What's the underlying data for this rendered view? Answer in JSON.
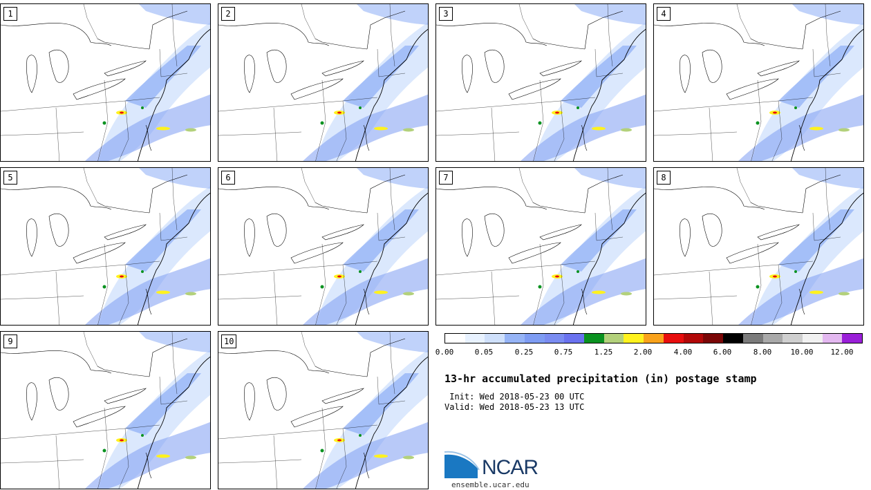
{
  "panels": [
    "1",
    "2",
    "3",
    "4",
    "5",
    "6",
    "7",
    "8",
    "9",
    "10"
  ],
  "colorbar": {
    "colors": [
      "#ffffff",
      "#e8f2ff",
      "#cfe0fb",
      "#96b4f6",
      "#7e9cf3",
      "#7a8cf1",
      "#6a72ef",
      "#0a9220",
      "#b3d17b",
      "#fff21e",
      "#f9a21b",
      "#e80e0e",
      "#b20808",
      "#7a0606",
      "#000000",
      "#7b7b7b",
      "#a9a9a9",
      "#cfcfcf",
      "#f1f1f1",
      "#e3b8f0",
      "#9a1fd8"
    ],
    "labels": [
      "0.00",
      "0.05",
      "0.25",
      "0.75",
      "1.25",
      "2.00",
      "4.00",
      "6.00",
      "8.00",
      "10.00",
      "12.00"
    ]
  },
  "title": "13-hr accumulated precipitation (in) postage stamp",
  "init": " Init: Wed 2018-05-23 00 UTC",
  "valid": "Valid: Wed 2018-05-23 13 UTC",
  "logo_text": "NCAR",
  "site": "ensemble.ucar.edu"
}
